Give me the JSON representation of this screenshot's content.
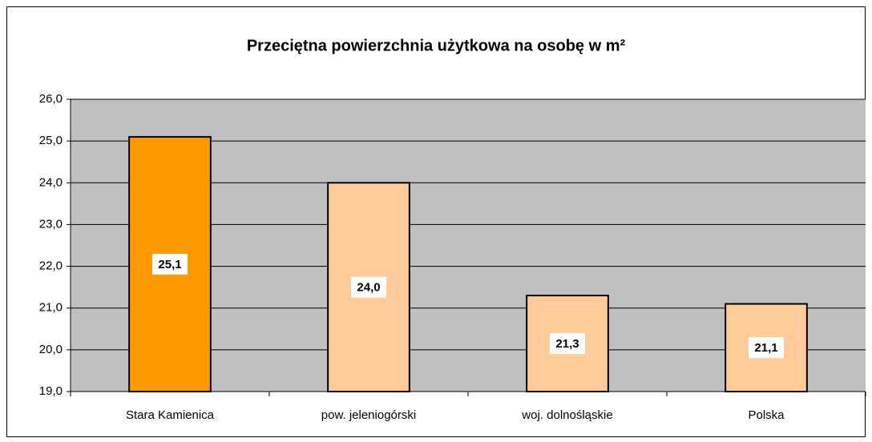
{
  "chart_data": {
    "type": "bar",
    "title": "Przeciętna powierzchnia użytkowa na osobę w m²",
    "categories": [
      "Stara Kamienica",
      "pow. jeleniogórski",
      "woj. dolnośląskie",
      "Polska"
    ],
    "values": [
      25.1,
      24.0,
      21.3,
      21.1
    ],
    "value_labels": [
      "25,1",
      "24,0",
      "21,3",
      "21,1"
    ],
    "colors": [
      "#ff9900",
      "#ffcc99",
      "#ffcc99",
      "#ffcc99"
    ],
    "ylim": [
      19,
      26
    ],
    "yticks": [
      {
        "value": 19,
        "label": "19,0"
      },
      {
        "value": 20,
        "label": "20,0"
      },
      {
        "value": 21,
        "label": "21,0"
      },
      {
        "value": 22,
        "label": "22,0"
      },
      {
        "value": 23,
        "label": "23,0"
      },
      {
        "value": 24,
        "label": "24,0"
      },
      {
        "value": 25,
        "label": "25,0"
      },
      {
        "value": 26,
        "label": "26,0"
      }
    ],
    "grid": true
  }
}
